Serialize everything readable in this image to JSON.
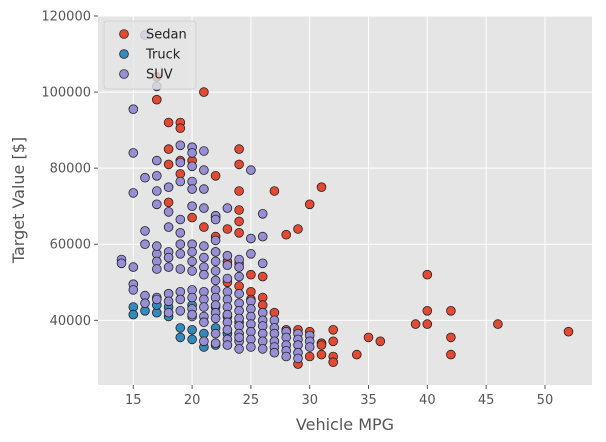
{
  "chart_data": {
    "type": "scatter",
    "title": "",
    "xlabel": "Vehicle MPG",
    "ylabel": "Target Value [$]",
    "xlim": [
      12.0,
      54.0
    ],
    "ylim": [
      23000,
      120000
    ],
    "xticks": [
      15,
      20,
      25,
      30,
      35,
      40,
      45,
      50
    ],
    "yticks": [
      40000,
      60000,
      80000,
      100000,
      120000
    ],
    "grid": true,
    "legend": "top-left",
    "series": [
      {
        "name": "Sedan",
        "color": "#E24A33",
        "points": [
          [
            17,
            104000
          ],
          [
            17,
            98000
          ],
          [
            18,
            92000
          ],
          [
            19,
            92000
          ],
          [
            19,
            90500
          ],
          [
            21,
            100000
          ],
          [
            24,
            85000
          ],
          [
            24,
            81000
          ],
          [
            18,
            85000
          ],
          [
            18,
            81000
          ],
          [
            19,
            82000
          ],
          [
            19,
            78500
          ],
          [
            20,
            82000
          ],
          [
            22,
            78000
          ],
          [
            24,
            74000
          ],
          [
            27,
            74000
          ],
          [
            31,
            75000
          ],
          [
            30,
            70500
          ],
          [
            18,
            71000
          ],
          [
            20,
            67000
          ],
          [
            22,
            67000
          ],
          [
            21,
            64500
          ],
          [
            22,
            62000
          ],
          [
            23,
            64000
          ],
          [
            24,
            69000
          ],
          [
            24,
            66000
          ],
          [
            24,
            63000
          ],
          [
            25,
            61500
          ],
          [
            28,
            62500
          ],
          [
            29,
            64000
          ],
          [
            22,
            58000
          ],
          [
            23,
            55500
          ],
          [
            24,
            55000
          ],
          [
            25,
            52000
          ],
          [
            26,
            51500
          ],
          [
            23,
            50000
          ],
          [
            24,
            49000
          ],
          [
            25,
            47500
          ],
          [
            26,
            46000
          ],
          [
            25,
            45500
          ],
          [
            26,
            44000
          ],
          [
            27,
            42000
          ],
          [
            28,
            37500
          ],
          [
            29,
            37500
          ],
          [
            30,
            37000
          ],
          [
            31,
            34000
          ],
          [
            32,
            37500
          ],
          [
            32,
            34500
          ],
          [
            31,
            33500
          ],
          [
            30,
            30500
          ],
          [
            31,
            31000
          ],
          [
            32,
            30500
          ],
          [
            32,
            29000
          ],
          [
            29,
            28500
          ],
          [
            35,
            35500
          ],
          [
            36,
            34500
          ],
          [
            34,
            31000
          ],
          [
            39,
            39000
          ],
          [
            40,
            39000
          ],
          [
            40,
            42500
          ],
          [
            40,
            52000
          ],
          [
            42,
            42500
          ],
          [
            42,
            35500
          ],
          [
            42,
            31000
          ],
          [
            46,
            39000
          ],
          [
            52,
            37000
          ]
        ]
      },
      {
        "name": "Truck",
        "color": "#348ABD",
        "points": [
          [
            15,
            43500
          ],
          [
            15,
            41500
          ],
          [
            16,
            42500
          ],
          [
            17,
            42000
          ],
          [
            17,
            44000
          ],
          [
            18,
            41000
          ],
          [
            18,
            43500
          ],
          [
            19,
            38000
          ],
          [
            19,
            35500
          ],
          [
            20,
            37500
          ],
          [
            20,
            35000
          ],
          [
            21,
            33000
          ],
          [
            22,
            33500
          ],
          [
            21,
            36500
          ],
          [
            22,
            38000
          ],
          [
            23,
            41000
          ],
          [
            23,
            36500
          ],
          [
            24,
            39500
          ],
          [
            20,
            44000
          ],
          [
            22,
            43500
          ]
        ]
      },
      {
        "name": "SUV",
        "color": "#988ED5",
        "points": [
          [
            16,
            115000
          ],
          [
            17,
            101500
          ],
          [
            15,
            95500
          ],
          [
            15,
            84000
          ],
          [
            15,
            73500
          ],
          [
            16,
            77500
          ],
          [
            17,
            82000
          ],
          [
            17,
            78000
          ],
          [
            17,
            74000
          ],
          [
            17,
            70500
          ],
          [
            18,
            75000
          ],
          [
            18,
            68500
          ],
          [
            19,
            86000
          ],
          [
            19,
            81500
          ],
          [
            19,
            76500
          ],
          [
            20,
            85500
          ],
          [
            20,
            84000
          ],
          [
            20,
            80500
          ],
          [
            20,
            76500
          ],
          [
            20,
            74500
          ],
          [
            21,
            84500
          ],
          [
            21,
            79500
          ],
          [
            21,
            74500
          ],
          [
            19,
            66500
          ],
          [
            20,
            70000
          ],
          [
            18,
            64500
          ],
          [
            21,
            69500
          ],
          [
            22,
            67500
          ],
          [
            22,
            66500
          ],
          [
            23,
            69500
          ],
          [
            25,
            79500
          ],
          [
            26,
            68000
          ],
          [
            16,
            63500
          ],
          [
            16,
            60000
          ],
          [
            17,
            57500
          ],
          [
            17,
            55500
          ],
          [
            17,
            53500
          ],
          [
            17,
            59500
          ],
          [
            18,
            58000
          ],
          [
            18,
            56500
          ],
          [
            18,
            54000
          ],
          [
            19,
            63000
          ],
          [
            19,
            60000
          ],
          [
            19,
            57500
          ],
          [
            19,
            53500
          ],
          [
            20,
            60000
          ],
          [
            20,
            58000
          ],
          [
            20,
            55500
          ],
          [
            20,
            53000
          ],
          [
            21,
            59500
          ],
          [
            21,
            56500
          ],
          [
            21,
            54000
          ],
          [
            21,
            52000
          ],
          [
            22,
            61000
          ],
          [
            22,
            58000
          ],
          [
            22,
            55500
          ],
          [
            22,
            53000
          ],
          [
            22,
            50500
          ],
          [
            23,
            57000
          ],
          [
            23,
            54500
          ],
          [
            23,
            51000
          ],
          [
            24,
            56000
          ],
          [
            24,
            54000
          ],
          [
            24,
            51500
          ],
          [
            25,
            61500
          ],
          [
            25,
            57500
          ],
          [
            26,
            62000
          ],
          [
            26,
            55000
          ],
          [
            14,
            56000
          ],
          [
            14,
            55000
          ],
          [
            15,
            54000
          ],
          [
            15,
            49500
          ],
          [
            15,
            48000
          ],
          [
            16,
            46500
          ],
          [
            16,
            44500
          ],
          [
            17,
            46000
          ],
          [
            17,
            45500
          ],
          [
            18,
            47000
          ],
          [
            18,
            45000
          ],
          [
            19,
            47500
          ],
          [
            19,
            45500
          ],
          [
            20,
            48000
          ],
          [
            20,
            46000
          ],
          [
            20,
            43000
          ],
          [
            20,
            41000
          ],
          [
            21,
            47500
          ],
          [
            21,
            45500
          ],
          [
            21,
            43500
          ],
          [
            21,
            41000
          ],
          [
            21,
            39500
          ],
          [
            22,
            48000
          ],
          [
            22,
            46000
          ],
          [
            22,
            44000
          ],
          [
            22,
            42000
          ],
          [
            22,
            40500
          ],
          [
            23,
            47500
          ],
          [
            23,
            45500
          ],
          [
            23,
            43500
          ],
          [
            23,
            41500
          ],
          [
            23,
            39500
          ],
          [
            23,
            37500
          ],
          [
            24,
            47000
          ],
          [
            24,
            44500
          ],
          [
            24,
            42500
          ],
          [
            24,
            40500
          ],
          [
            24,
            38500
          ],
          [
            24,
            36500
          ],
          [
            24,
            34500
          ],
          [
            24,
            32500
          ],
          [
            25,
            45000
          ],
          [
            25,
            43000
          ],
          [
            25,
            41000
          ],
          [
            25,
            39000
          ],
          [
            25,
            37000
          ],
          [
            25,
            35000
          ],
          [
            25,
            33000
          ],
          [
            26,
            42000
          ],
          [
            26,
            40000
          ],
          [
            26,
            38500
          ],
          [
            26,
            36500
          ],
          [
            26,
            34500
          ],
          [
            26,
            32500
          ],
          [
            27,
            40000
          ],
          [
            27,
            38000
          ],
          [
            27,
            36500
          ],
          [
            27,
            34500
          ],
          [
            27,
            33000
          ],
          [
            27,
            31500
          ],
          [
            28,
            37000
          ],
          [
            28,
            35500
          ],
          [
            28,
            33500
          ],
          [
            28,
            32000
          ],
          [
            28,
            30500
          ],
          [
            29,
            36500
          ],
          [
            29,
            35000
          ],
          [
            29,
            33500
          ],
          [
            29,
            31500
          ],
          [
            29,
            30000
          ],
          [
            30,
            36000
          ],
          [
            30,
            34500
          ],
          [
            30,
            33000
          ],
          [
            22,
            36500
          ],
          [
            23,
            35000
          ],
          [
            21,
            34500
          ],
          [
            22,
            34000
          ],
          [
            23,
            33500
          ],
          [
            24,
            35500
          ],
          [
            20,
            41500
          ],
          [
            19,
            42500
          ],
          [
            18,
            42000
          ]
        ]
      }
    ]
  }
}
